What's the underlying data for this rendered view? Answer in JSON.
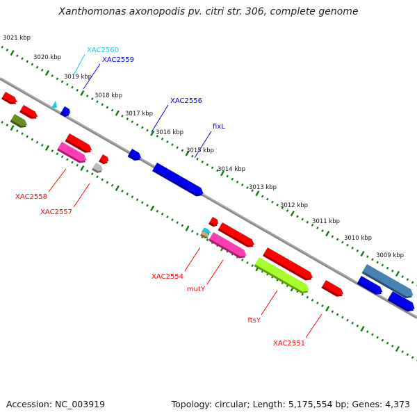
{
  "title": "Xanthomonas axonopodis pv. citri str. 306, complete genome",
  "accession": "Accession: NC_003919",
  "topology": "Topology: circular; Length: 5,175,554 bp; Genes: 4,373",
  "colors": {
    "backbone": "#888888",
    "tick": "#0a7a0a",
    "red": "#ff0000",
    "blue": "#0000ee",
    "cyan": "#1ac8e6",
    "pink": "#ff3cb4",
    "olive": "#6b8e23",
    "lime": "#a6ff2a",
    "steel": "#4682b4",
    "gray": "#bbbbbb",
    "tan": "#c8aa78"
  },
  "kbp_ticks": [
    "3021 kbp",
    "3020 kbp",
    "3019 kbp",
    "3018 kbp",
    "3017 kbp",
    "3016 kbp",
    "3015 kbp",
    "3014 kbp",
    "3013 kbp",
    "3012 kbp",
    "3011 kbp",
    "3010 kbp",
    "3009 kbp"
  ],
  "gene_labels": [
    {
      "text": "XAC2560",
      "color": "cyan"
    },
    {
      "text": "XAC2559",
      "color": "blue"
    },
    {
      "text": "XAC2556",
      "color": "blue"
    },
    {
      "text": "fixL",
      "color": "blue"
    },
    {
      "text": "XAC2558",
      "color": "red"
    },
    {
      "text": "XAC2557",
      "color": "red"
    },
    {
      "text": "XAC2554",
      "color": "red"
    },
    {
      "text": "mutY",
      "color": "red"
    },
    {
      "text": "ftsY",
      "color": "red"
    },
    {
      "text": "XAC2551",
      "color": "red"
    }
  ]
}
